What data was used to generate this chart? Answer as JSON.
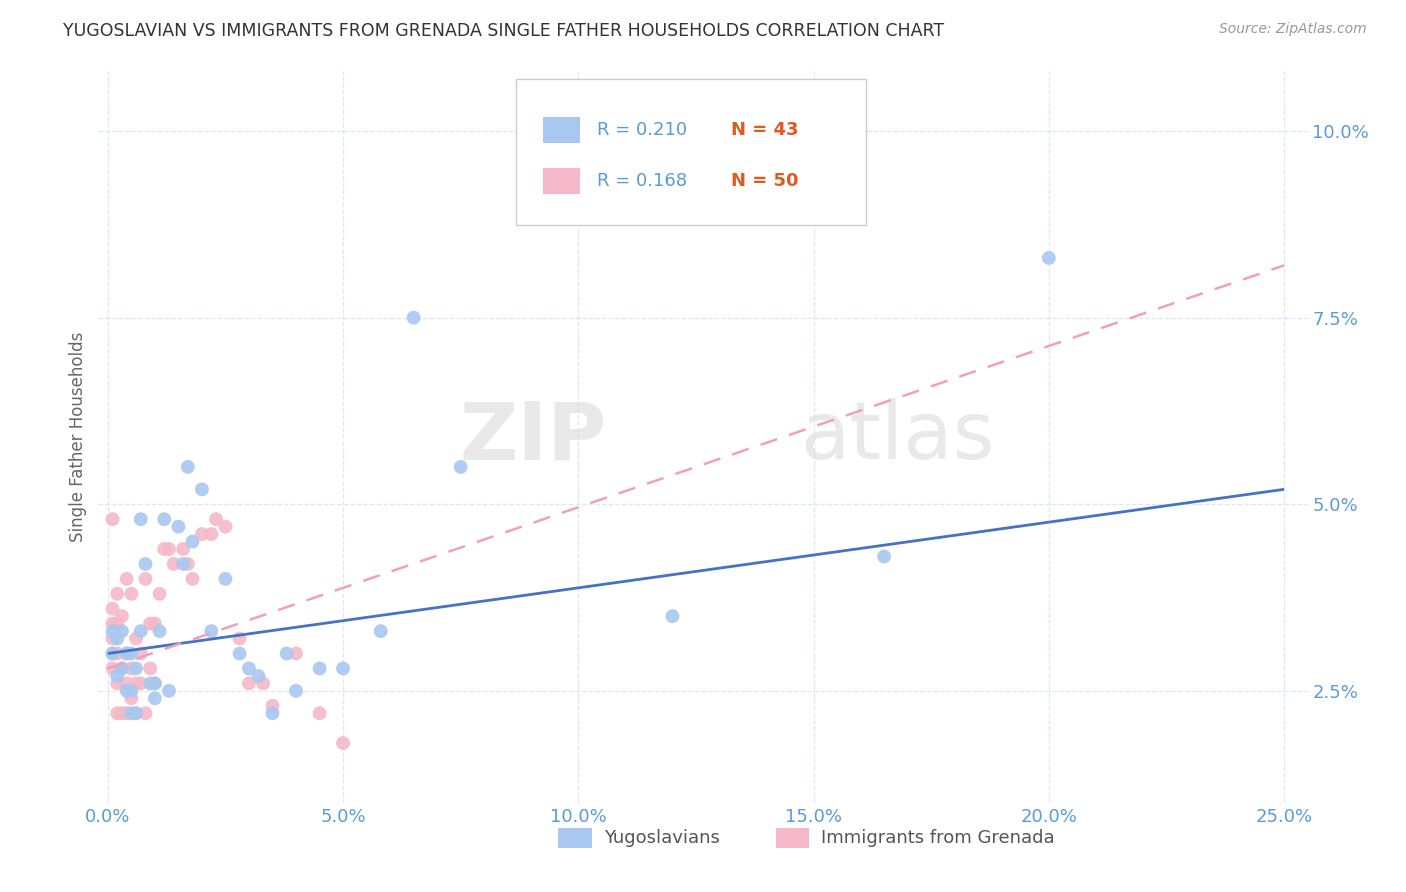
{
  "title": "YUGOSLAVIAN VS IMMIGRANTS FROM GRENADA SINGLE FATHER HOUSEHOLDS CORRELATION CHART",
  "source": "Source: ZipAtlas.com",
  "xlabel_ticks": [
    "0.0%",
    "5.0%",
    "10.0%",
    "15.0%",
    "20.0%",
    "25.0%"
  ],
  "xlabel_vals": [
    0.0,
    0.05,
    0.1,
    0.15,
    0.2,
    0.25
  ],
  "ylabel_ticks": [
    "2.5%",
    "5.0%",
    "7.5%",
    "10.0%"
  ],
  "ylabel_vals": [
    0.025,
    0.05,
    0.075,
    0.1
  ],
  "ylabel_label": "Single Father Households",
  "legend_labels": [
    "Yugoslavians",
    "Immigrants from Grenada"
  ],
  "R_yugo": 0.21,
  "N_yugo": 43,
  "R_gren": 0.168,
  "N_gren": 50,
  "blue_color": "#a8c8f0",
  "pink_color": "#f5b8c8",
  "line_blue": "#4472c4",
  "line_pink": "#f0a0b8",
  "axis_color": "#5b9bd5",
  "watermark1": "ZIP",
  "watermark2": "atlas",
  "yugo_x": [
    0.001,
    0.001,
    0.002,
    0.002,
    0.003,
    0.003,
    0.004,
    0.004,
    0.005,
    0.005,
    0.005,
    0.006,
    0.006,
    0.007,
    0.007,
    0.008,
    0.009,
    0.01,
    0.01,
    0.011,
    0.012,
    0.013,
    0.015,
    0.016,
    0.017,
    0.018,
    0.02,
    0.022,
    0.025,
    0.028,
    0.03,
    0.032,
    0.035,
    0.038,
    0.04,
    0.045,
    0.05,
    0.058,
    0.065,
    0.075,
    0.12,
    0.165,
    0.2
  ],
  "yugo_y": [
    0.03,
    0.033,
    0.027,
    0.032,
    0.028,
    0.033,
    0.025,
    0.03,
    0.025,
    0.03,
    0.022,
    0.028,
    0.022,
    0.033,
    0.048,
    0.042,
    0.026,
    0.026,
    0.024,
    0.033,
    0.048,
    0.025,
    0.047,
    0.042,
    0.055,
    0.045,
    0.052,
    0.033,
    0.04,
    0.03,
    0.028,
    0.027,
    0.022,
    0.03,
    0.025,
    0.028,
    0.028,
    0.033,
    0.075,
    0.055,
    0.035,
    0.043,
    0.083
  ],
  "gren_x": [
    0.001,
    0.001,
    0.001,
    0.001,
    0.001,
    0.001,
    0.002,
    0.002,
    0.002,
    0.002,
    0.002,
    0.003,
    0.003,
    0.003,
    0.004,
    0.004,
    0.004,
    0.004,
    0.005,
    0.005,
    0.005,
    0.006,
    0.006,
    0.006,
    0.007,
    0.007,
    0.008,
    0.008,
    0.009,
    0.009,
    0.01,
    0.01,
    0.011,
    0.012,
    0.013,
    0.014,
    0.016,
    0.017,
    0.018,
    0.02,
    0.022,
    0.023,
    0.025,
    0.028,
    0.03,
    0.033,
    0.035,
    0.04,
    0.045,
    0.05
  ],
  "gren_y": [
    0.028,
    0.03,
    0.032,
    0.034,
    0.036,
    0.048,
    0.022,
    0.026,
    0.03,
    0.034,
    0.038,
    0.022,
    0.028,
    0.035,
    0.022,
    0.026,
    0.03,
    0.04,
    0.024,
    0.028,
    0.038,
    0.022,
    0.026,
    0.032,
    0.026,
    0.03,
    0.022,
    0.04,
    0.028,
    0.034,
    0.026,
    0.034,
    0.038,
    0.044,
    0.044,
    0.042,
    0.044,
    0.042,
    0.04,
    0.046,
    0.046,
    0.048,
    0.047,
    0.032,
    0.026,
    0.026,
    0.023,
    0.03,
    0.022,
    0.018
  ],
  "yugo_trend_x": [
    0.0,
    0.25
  ],
  "yugo_trend_y": [
    0.03,
    0.052
  ],
  "gren_trend_x": [
    0.0,
    0.25
  ],
  "gren_trend_y": [
    0.028,
    0.082
  ],
  "xlim": [
    -0.002,
    0.255
  ],
  "ylim": [
    0.01,
    0.108
  ]
}
